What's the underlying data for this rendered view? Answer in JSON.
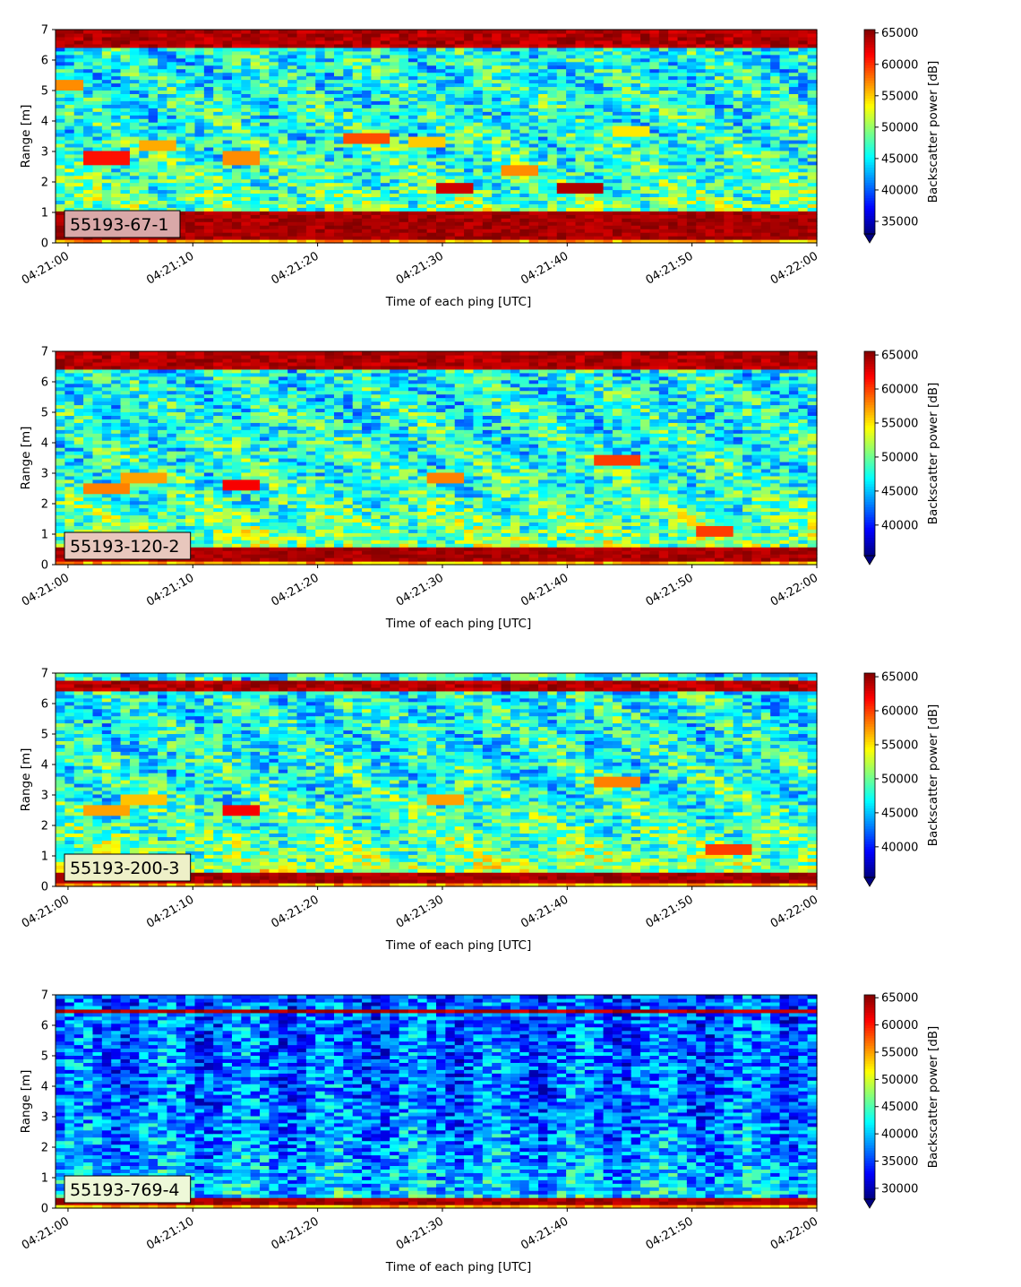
{
  "chart_data": [
    {
      "type": "heatmap",
      "label": "55193-67-1",
      "xlabel": "Time of each ping [UTC]",
      "ylabel": "Range [m]",
      "x_ticks": [
        "04:21:00",
        "04:21:10",
        "04:21:20",
        "04:21:30",
        "04:21:40",
        "04:21:50",
        "04:22:00"
      ],
      "x_range": [
        "04:20:59",
        "04:22:00"
      ],
      "y_ticks": [
        0,
        1,
        2,
        3,
        4,
        5,
        6,
        7
      ],
      "y_range": [
        0,
        7
      ],
      "colorbar": {
        "label": "Backscatter power [dB]",
        "colormap": "jet",
        "range": [
          33000,
          65535
        ],
        "ticks": [
          35000,
          40000,
          45000,
          50000,
          55000,
          60000,
          65000
        ],
        "extend": "min"
      },
      "badge_color": "#d9a8a8",
      "features": {
        "bottom_band": [
          0.15,
          1.0
        ],
        "top_band": [
          6.4,
          7.0
        ],
        "patches": [
          {
            "t": "04:21:03",
            "r": 2.8,
            "level": 61000
          },
          {
            "t": "04:21:07",
            "r": 3.2,
            "level": 56000
          },
          {
            "t": "04:21:14",
            "r": 2.8,
            "level": 57000
          },
          {
            "t": "04:21:24",
            "r": 3.4,
            "level": 59000
          },
          {
            "t": "04:21:29",
            "r": 3.3,
            "level": 55000
          },
          {
            "t": "04:21:31",
            "r": 1.8,
            "level": 63000
          },
          {
            "t": "04:21:36",
            "r": 2.4,
            "level": 57000
          },
          {
            "t": "04:21:41",
            "r": 1.8,
            "level": 64000
          },
          {
            "t": "04:21:45",
            "r": 3.7,
            "level": 54000
          },
          {
            "t": "04:21:00",
            "r": 5.2,
            "level": 57000
          }
        ]
      }
    },
    {
      "type": "heatmap",
      "label": "55193-120-2",
      "xlabel": "Time of each ping [UTC]",
      "ylabel": "Range [m]",
      "x_ticks": [
        "04:21:00",
        "04:21:10",
        "04:21:20",
        "04:21:30",
        "04:21:40",
        "04:21:50",
        "04:22:00"
      ],
      "x_range": [
        "04:20:59",
        "04:22:00"
      ],
      "y_ticks": [
        0,
        1,
        2,
        3,
        4,
        5,
        6,
        7
      ],
      "y_range": [
        0,
        7
      ],
      "colorbar": {
        "label": "Backscatter power [dB]",
        "colormap": "jet",
        "range": [
          35500,
          65535
        ],
        "ticks": [
          40000,
          45000,
          50000,
          55000,
          60000,
          65000
        ],
        "extend": "min"
      },
      "badge_color": "#e8c7bd",
      "features": {
        "bottom_band": [
          0.15,
          0.6
        ],
        "top_band": [
          6.4,
          7.0
        ],
        "patches": [
          {
            "t": "04:21:03",
            "r": 2.5,
            "level": 58000
          },
          {
            "t": "04:21:06",
            "r": 2.9,
            "level": 57000
          },
          {
            "t": "04:21:14",
            "r": 2.6,
            "level": 62000
          },
          {
            "t": "04:21:30",
            "r": 2.9,
            "level": 58000
          },
          {
            "t": "04:21:44",
            "r": 3.4,
            "level": 60000
          },
          {
            "t": "04:21:52",
            "r": 1.1,
            "level": 60000
          }
        ]
      }
    },
    {
      "type": "heatmap",
      "label": "55193-200-3",
      "xlabel": "Time of each ping [UTC]",
      "ylabel": "Range [m]",
      "x_ticks": [
        "04:21:00",
        "04:21:10",
        "04:21:20",
        "04:21:30",
        "04:21:40",
        "04:21:50",
        "04:22:00"
      ],
      "x_range": [
        "04:20:59",
        "04:22:00"
      ],
      "y_ticks": [
        0,
        1,
        2,
        3,
        4,
        5,
        6,
        7
      ],
      "y_range": [
        0,
        7
      ],
      "colorbar": {
        "label": "Backscatter power [dB]",
        "colormap": "jet",
        "range": [
          35500,
          65535
        ],
        "ticks": [
          40000,
          45000,
          50000,
          55000,
          60000,
          65000
        ],
        "extend": "min"
      },
      "badge_color": "#eef0c8",
      "features": {
        "bottom_band": [
          0.15,
          0.5
        ],
        "top_band": [
          6.4,
          6.8
        ],
        "patches": [
          {
            "t": "04:21:03",
            "r": 2.5,
            "level": 57000
          },
          {
            "t": "04:21:06",
            "r": 2.9,
            "level": 56000
          },
          {
            "t": "04:21:14",
            "r": 2.5,
            "level": 62000
          },
          {
            "t": "04:21:30",
            "r": 2.9,
            "level": 57000
          },
          {
            "t": "04:21:44",
            "r": 3.4,
            "level": 58000
          },
          {
            "t": "04:21:53",
            "r": 1.2,
            "level": 60000
          }
        ]
      }
    },
    {
      "type": "heatmap",
      "label": "55193-769-4",
      "xlabel": "Time of each ping [UTC]",
      "ylabel": "Range [m]",
      "x_ticks": [
        "04:21:00",
        "04:21:10",
        "04:21:20",
        "04:21:30",
        "04:21:40",
        "04:21:50",
        "04:22:00"
      ],
      "x_range": [
        "04:20:59",
        "04:22:00"
      ],
      "y_ticks": [
        0,
        1,
        2,
        3,
        4,
        5,
        6,
        7
      ],
      "y_range": [
        0,
        7
      ],
      "colorbar": {
        "label": "Backscatter power [dB]",
        "colormap": "jet",
        "range": [
          28000,
          65535
        ],
        "ticks": [
          30000,
          35000,
          40000,
          45000,
          50000,
          55000,
          60000,
          65000
        ],
        "extend": "min"
      },
      "badge_color": "#eef8d8",
      "features": {
        "bottom_band": [
          0.15,
          0.3
        ],
        "top_band": [
          6.4,
          6.55
        ],
        "patches": []
      }
    }
  ]
}
